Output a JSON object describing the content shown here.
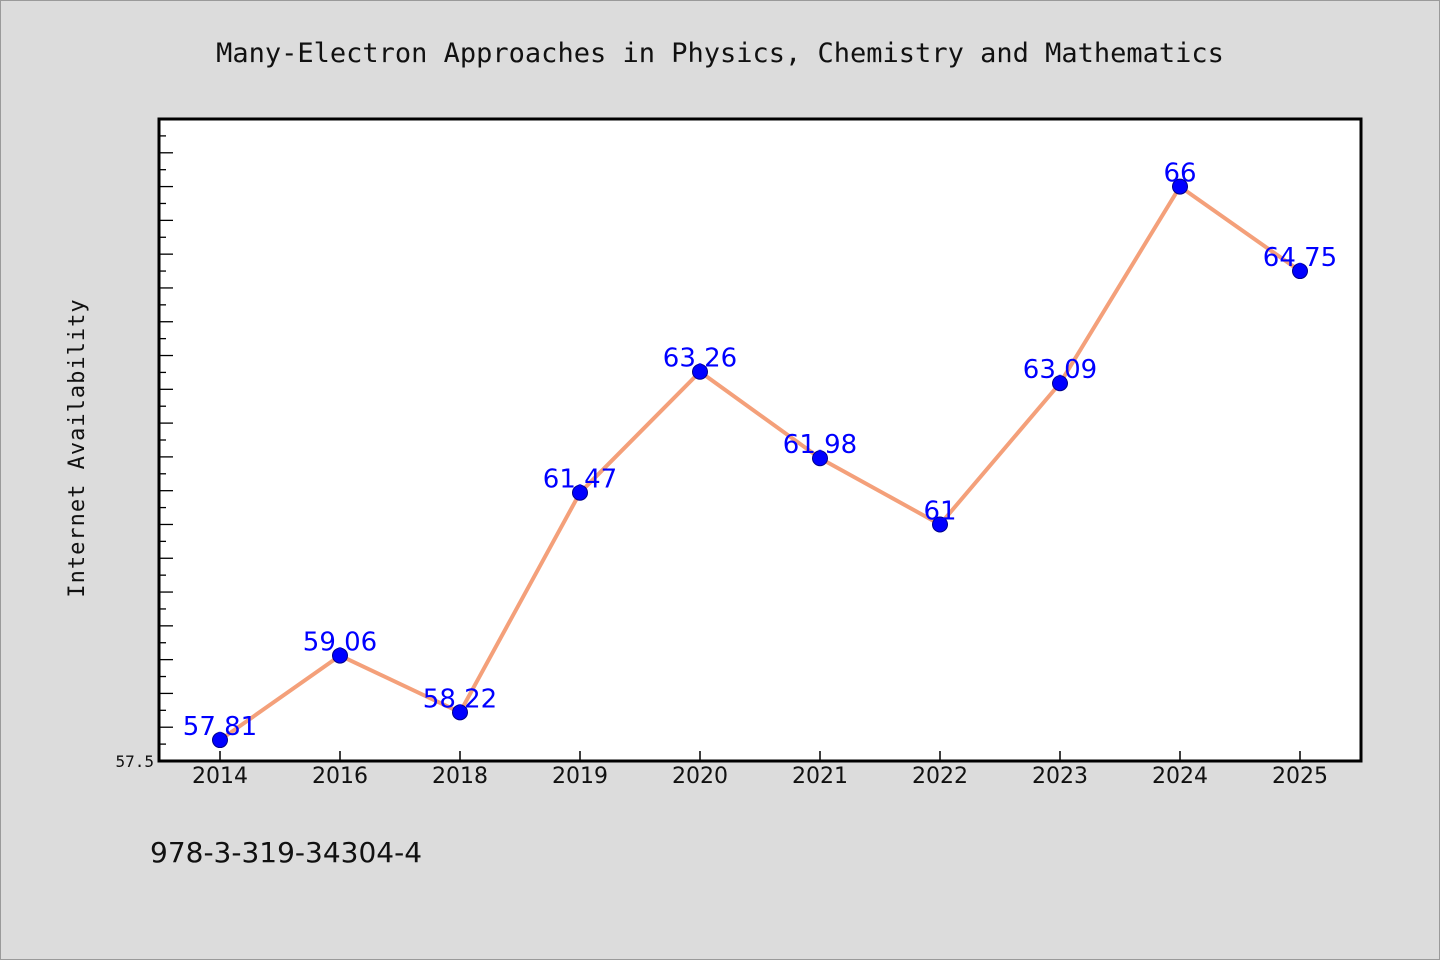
{
  "chart_data": {
    "type": "line",
    "title": "Many-Electron Approaches in Physics, Chemistry and Mathematics",
    "xlabel": "",
    "ylabel": "Internet Availability",
    "categories": [
      "2014",
      "2016",
      "2018",
      "2019",
      "2020",
      "2021",
      "2022",
      "2023",
      "2024",
      "2025"
    ],
    "series": [
      {
        "values": [
          57.81,
          59.06,
          58.22,
          61.47,
          63.26,
          61.98,
          61,
          63.09,
          66,
          64.75
        ],
        "labels": [
          "57.81",
          "59.06",
          "58.22",
          "61.47",
          "63.26",
          "61.98",
          "61",
          "63.09",
          "66",
          "64.75"
        ],
        "line_color": "#f4a07a",
        "marker_color": "#0000ff"
      }
    ],
    "ylim": [
      57.5,
      67
    ],
    "yticks_labeled": [
      "57.5"
    ],
    "grid": false,
    "legend": "none"
  },
  "footer": {
    "isbn": "978-3-319-34304-4"
  }
}
